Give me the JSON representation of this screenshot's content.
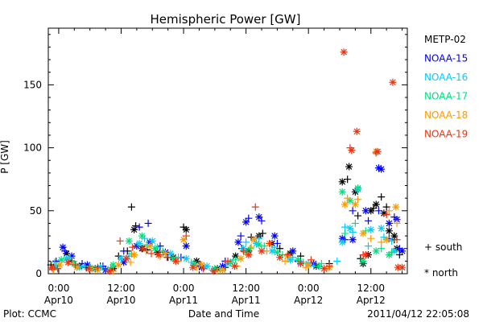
{
  "chart_data": {
    "type": "scatter",
    "title": "Hemispheric Power [GW]",
    "xlabel": "Date and Time",
    "ylabel": "P [GW]",
    "x_unit": "hours since 2011-04-10 00:00",
    "xlim": [
      -2,
      67
    ],
    "ylim": [
      0,
      195
    ],
    "yticks": [
      0,
      50,
      100,
      150
    ],
    "xticks": [
      {
        "x": 0,
        "top": "0:00",
        "bottom": "Apr10"
      },
      {
        "x": 12,
        "top": "12:00",
        "bottom": "Apr10"
      },
      {
        "x": 24,
        "top": "0:00",
        "bottom": "Apr11"
      },
      {
        "x": 36,
        "top": "12:00",
        "bottom": "Apr11"
      },
      {
        "x": 48,
        "top": "0:00",
        "bottom": "Apr12"
      },
      {
        "x": 60,
        "top": "12:00",
        "bottom": "Apr12"
      }
    ],
    "legend_position": "right",
    "series": [
      {
        "name": "METP-02",
        "color": "#000000",
        "south": [
          [
            -1.5,
            7
          ],
          [
            2.5,
            10
          ],
          [
            5.3,
            5
          ],
          [
            8.0,
            6
          ],
          [
            11.5,
            14
          ],
          [
            13.2,
            18
          ],
          [
            14.0,
            53
          ],
          [
            14.8,
            38
          ],
          [
            17.0,
            19
          ],
          [
            21.0,
            13
          ],
          [
            24.0,
            37
          ],
          [
            27.2,
            7
          ],
          [
            32.0,
            5
          ],
          [
            35.2,
            20
          ],
          [
            37.0,
            29
          ],
          [
            39.2,
            32
          ],
          [
            42.5,
            20
          ],
          [
            46.5,
            14
          ],
          [
            52.0,
            8
          ],
          [
            55.5,
            75
          ],
          [
            57.5,
            46
          ],
          [
            58.0,
            12
          ],
          [
            60.5,
            52
          ],
          [
            62.0,
            61
          ],
          [
            63.0,
            53
          ],
          [
            64.5,
            27
          ],
          [
            65.5,
            15
          ]
        ],
        "north": [
          [
            -1.0,
            5
          ],
          [
            1.5,
            16
          ],
          [
            4.0,
            6
          ],
          [
            7.0,
            4
          ],
          [
            10.5,
            4
          ],
          [
            14.5,
            35
          ],
          [
            16.0,
            20
          ],
          [
            19.0,
            17
          ],
          [
            22.0,
            13
          ],
          [
            24.5,
            35
          ],
          [
            26.5,
            10
          ],
          [
            30.5,
            4
          ],
          [
            34.0,
            14
          ],
          [
            36.5,
            18
          ],
          [
            38.5,
            30
          ],
          [
            41.0,
            24
          ],
          [
            44.5,
            16
          ],
          [
            49.5,
            6
          ],
          [
            54.5,
            73
          ],
          [
            55.8,
            85
          ],
          [
            57.0,
            65
          ],
          [
            58.5,
            8
          ],
          [
            59.5,
            15
          ],
          [
            60.0,
            50
          ],
          [
            61.0,
            55
          ],
          [
            62.5,
            48
          ],
          [
            63.5,
            34
          ],
          [
            64.5,
            30
          ],
          [
            65.0,
            20
          ]
        ]
      },
      {
        "name": "NOAA-15",
        "color": "#0000ff",
        "south": [
          [
            -0.5,
            10
          ],
          [
            1.2,
            18
          ],
          [
            4.5,
            8
          ],
          [
            8.5,
            6
          ],
          [
            12.5,
            18
          ],
          [
            15.5,
            37
          ],
          [
            17.2,
            40
          ],
          [
            19.5,
            22
          ],
          [
            23.5,
            13
          ],
          [
            27.0,
            6
          ],
          [
            32.0,
            10
          ],
          [
            35.0,
            30
          ],
          [
            36.5,
            44
          ],
          [
            39.0,
            42
          ],
          [
            42.0,
            24
          ],
          [
            46.0,
            10
          ],
          [
            50.0,
            6
          ],
          [
            55.0,
            27
          ],
          [
            56.5,
            50
          ],
          [
            59.5,
            42
          ],
          [
            61.5,
            50
          ],
          [
            63.5,
            28
          ],
          [
            64.5,
            45
          ],
          [
            65.5,
            20
          ]
        ],
        "north": [
          [
            0.8,
            21
          ],
          [
            2.5,
            14
          ],
          [
            5.5,
            7
          ],
          [
            9.0,
            3
          ],
          [
            12.5,
            9
          ],
          [
            15.0,
            22
          ],
          [
            17.5,
            25
          ],
          [
            20.5,
            17
          ],
          [
            24.5,
            22
          ],
          [
            27.5,
            5
          ],
          [
            31.5,
            6
          ],
          [
            34.5,
            25
          ],
          [
            36.0,
            41
          ],
          [
            38.5,
            45
          ],
          [
            41.5,
            30
          ],
          [
            45.0,
            18
          ],
          [
            49.0,
            8
          ],
          [
            54.5,
            28
          ],
          [
            56.5,
            27
          ],
          [
            59.0,
            50
          ],
          [
            61.5,
            84
          ],
          [
            62.0,
            83
          ],
          [
            63.5,
            40
          ],
          [
            65.0,
            43
          ],
          [
            66.0,
            18
          ]
        ]
      },
      {
        "name": "NOAA-16",
        "color": "#00ccff",
        "south": [
          [
            -1.2,
            4
          ],
          [
            2.0,
            9
          ],
          [
            5.0,
            6
          ],
          [
            9.5,
            3
          ],
          [
            13.5,
            14
          ],
          [
            16.5,
            28
          ],
          [
            19.0,
            21
          ],
          [
            22.5,
            12
          ],
          [
            25.5,
            9
          ],
          [
            29.5,
            3
          ],
          [
            33.5,
            11
          ],
          [
            36.0,
            25
          ],
          [
            38.5,
            28
          ],
          [
            41.5,
            21
          ],
          [
            45.0,
            13
          ],
          [
            49.0,
            6
          ],
          [
            53.5,
            10
          ],
          [
            55.0,
            37
          ],
          [
            56.5,
            33
          ],
          [
            59.5,
            22
          ],
          [
            62.5,
            29
          ],
          [
            64.0,
            26
          ]
        ],
        "north": [
          [
            -0.5,
            6
          ],
          [
            1.5,
            12
          ],
          [
            4.0,
            5
          ],
          [
            8.0,
            5
          ],
          [
            12.0,
            12
          ],
          [
            15.5,
            24
          ],
          [
            18.0,
            26
          ],
          [
            21.5,
            16
          ],
          [
            24.5,
            12
          ],
          [
            28.5,
            6
          ],
          [
            32.5,
            8
          ],
          [
            35.5,
            20
          ],
          [
            38.0,
            24
          ],
          [
            41.0,
            18
          ],
          [
            44.5,
            11
          ],
          [
            48.0,
            8
          ],
          [
            54.5,
            25
          ],
          [
            56.0,
            36
          ],
          [
            57.5,
            67
          ],
          [
            60.0,
            35
          ],
          [
            62.0,
            36
          ],
          [
            64.5,
            18
          ]
        ]
      },
      {
        "name": "NOAA-17",
        "color": "#00e080",
        "south": [
          [
            -0.8,
            9
          ],
          [
            2.2,
            13
          ],
          [
            6.0,
            6
          ],
          [
            10.0,
            5
          ],
          [
            14.0,
            16
          ],
          [
            17.0,
            23
          ],
          [
            20.0,
            18
          ],
          [
            23.0,
            13
          ],
          [
            27.0,
            7
          ],
          [
            31.0,
            4
          ],
          [
            34.0,
            11
          ],
          [
            36.8,
            20
          ],
          [
            39.5,
            22
          ],
          [
            43.0,
            15
          ],
          [
            47.0,
            9
          ],
          [
            50.5,
            8
          ],
          [
            55.0,
            32
          ],
          [
            57.0,
            40
          ],
          [
            59.0,
            34
          ],
          [
            62.0,
            20
          ],
          [
            64.0,
            17
          ]
        ],
        "north": [
          [
            0.5,
            11
          ],
          [
            3.0,
            8
          ],
          [
            6.5,
            4
          ],
          [
            10.5,
            7
          ],
          [
            13.5,
            26
          ],
          [
            16.0,
            30
          ],
          [
            18.5,
            20
          ],
          [
            22.0,
            12
          ],
          [
            26.0,
            8
          ],
          [
            30.0,
            4
          ],
          [
            33.0,
            9
          ],
          [
            36.0,
            17
          ],
          [
            38.5,
            23
          ],
          [
            42.0,
            17
          ],
          [
            46.0,
            11
          ],
          [
            50.0,
            6
          ],
          [
            54.5,
            65
          ],
          [
            56.0,
            58
          ],
          [
            57.5,
            68
          ],
          [
            58.5,
            10
          ],
          [
            61.0,
            18
          ],
          [
            63.5,
            15
          ]
        ]
      },
      {
        "name": "NOAA-18",
        "color": "#ff9900",
        "south": [
          [
            -1.0,
            3
          ],
          [
            2.8,
            8
          ],
          [
            6.5,
            4
          ],
          [
            10.5,
            2
          ],
          [
            13.8,
            9
          ],
          [
            16.8,
            18
          ],
          [
            19.5,
            14
          ],
          [
            23.0,
            10
          ],
          [
            26.5,
            5
          ],
          [
            30.5,
            2
          ],
          [
            34.2,
            6
          ],
          [
            37.0,
            21
          ],
          [
            40.0,
            18
          ],
          [
            43.5,
            10
          ],
          [
            47.5,
            5
          ],
          [
            51.5,
            4
          ],
          [
            55.5,
            60
          ],
          [
            57.5,
            59
          ],
          [
            60.0,
            28
          ],
          [
            62.0,
            25
          ],
          [
            63.5,
            50
          ],
          [
            65.0,
            40
          ]
        ],
        "north": [
          [
            0.2,
            7
          ],
          [
            3.5,
            5
          ],
          [
            7.5,
            3
          ],
          [
            11.5,
            7
          ],
          [
            14.5,
            15
          ],
          [
            17.5,
            22
          ],
          [
            20.5,
            16
          ],
          [
            24.0,
            27
          ],
          [
            27.5,
            7
          ],
          [
            31.5,
            3
          ],
          [
            35.0,
            12
          ],
          [
            37.5,
            27
          ],
          [
            40.5,
            24
          ],
          [
            44.0,
            14
          ],
          [
            48.0,
            7
          ],
          [
            52.0,
            5
          ],
          [
            55.0,
            55
          ],
          [
            57.0,
            55
          ],
          [
            58.5,
            32
          ],
          [
            61.0,
            97
          ],
          [
            63.0,
            27
          ],
          [
            64.8,
            53
          ]
        ]
      },
      {
        "name": "NOAA-19",
        "color": "#ee3311",
        "south": [
          [
            -0.2,
            4
          ],
          [
            3.2,
            7
          ],
          [
            7.5,
            5
          ],
          [
            11.8,
            26
          ],
          [
            14.2,
            21
          ],
          [
            17.8,
            16
          ],
          [
            20.8,
            13
          ],
          [
            24.5,
            30
          ],
          [
            27.8,
            4
          ],
          [
            32.5,
            10
          ],
          [
            35.5,
            18
          ],
          [
            37.8,
            53
          ],
          [
            40.5,
            24
          ],
          [
            44.0,
            15
          ],
          [
            48.5,
            11
          ],
          [
            52.0,
            6
          ],
          [
            56.0,
            100
          ],
          [
            58.5,
            15
          ],
          [
            61.0,
            96
          ],
          [
            63.0,
            47
          ],
          [
            65.0,
            27
          ]
        ],
        "north": [
          [
            -1.3,
            5
          ],
          [
            1.8,
            9
          ],
          [
            5.8,
            4
          ],
          [
            9.8,
            2
          ],
          [
            13.0,
            12
          ],
          [
            16.2,
            20
          ],
          [
            19.2,
            15
          ],
          [
            22.5,
            10
          ],
          [
            25.8,
            5
          ],
          [
            29.8,
            2
          ],
          [
            33.8,
            6
          ],
          [
            36.5,
            15
          ],
          [
            39.0,
            18
          ],
          [
            42.5,
            13
          ],
          [
            46.5,
            8
          ],
          [
            51.0,
            4
          ],
          [
            54.8,
            176
          ],
          [
            56.3,
            98
          ],
          [
            57.3,
            113
          ],
          [
            59.0,
            15
          ],
          [
            61.3,
            97
          ],
          [
            64.2,
            152
          ],
          [
            65.2,
            5
          ],
          [
            66.0,
            5
          ]
        ]
      }
    ],
    "symbol_legend": {
      "south": "+ south",
      "north": "* north"
    },
    "footer_left": "Plot: CCMC",
    "footer_right": "2011/04/12 22:05:08"
  }
}
